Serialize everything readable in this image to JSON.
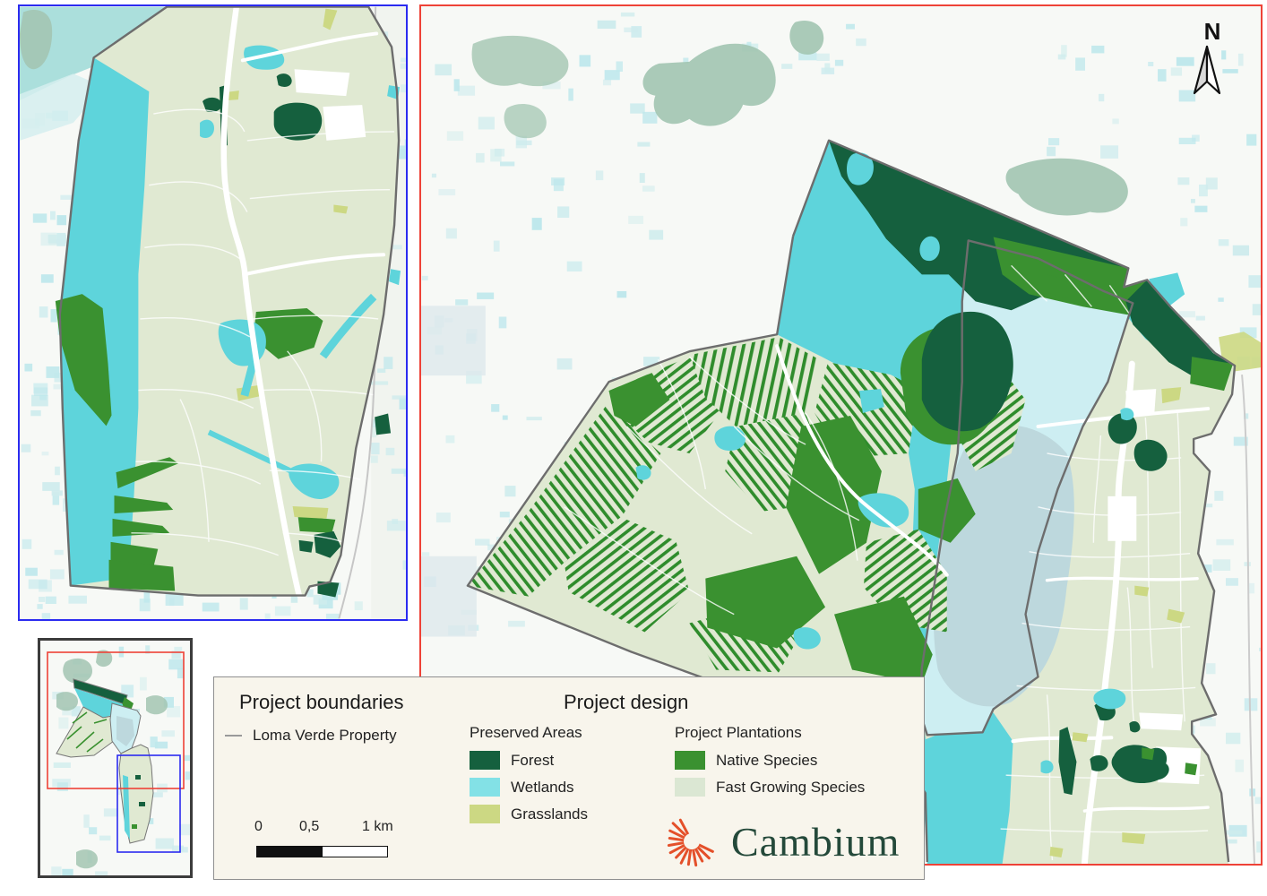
{
  "north_label": "N",
  "legend": {
    "boundaries_title": "Project boundaries",
    "design_title": "Project design",
    "boundary_item": {
      "label": "Loma Verde Property",
      "line_color": "#9a9a9a"
    },
    "preserved_title": "Preserved Areas",
    "plantations_title": "Project Plantations",
    "preserved_items": [
      {
        "label": "Forest",
        "color": "#15603e"
      },
      {
        "label": "Wetlands",
        "color": "#83e1e6"
      },
      {
        "label": "Grasslands",
        "color": "#ccd883"
      }
    ],
    "plantation_items": [
      {
        "label": "Native Species",
        "color": "#3a9130"
      },
      {
        "label": "Fast Growing Species",
        "color": "#dbe7d3"
      }
    ],
    "scalebar": {
      "tick0": "0",
      "tick1": "0,5",
      "tick2": "1 km"
    },
    "logo": {
      "text": "Cambium",
      "text_color": "#24493a",
      "icon_color": "#e4502a"
    }
  },
  "colors": {
    "main_frame": "#ee4237",
    "inset_frame": "#2b2bf0",
    "property_boundary": "#6d6d6d",
    "lake": "#cdeef2",
    "background": "#f7f9f6"
  }
}
